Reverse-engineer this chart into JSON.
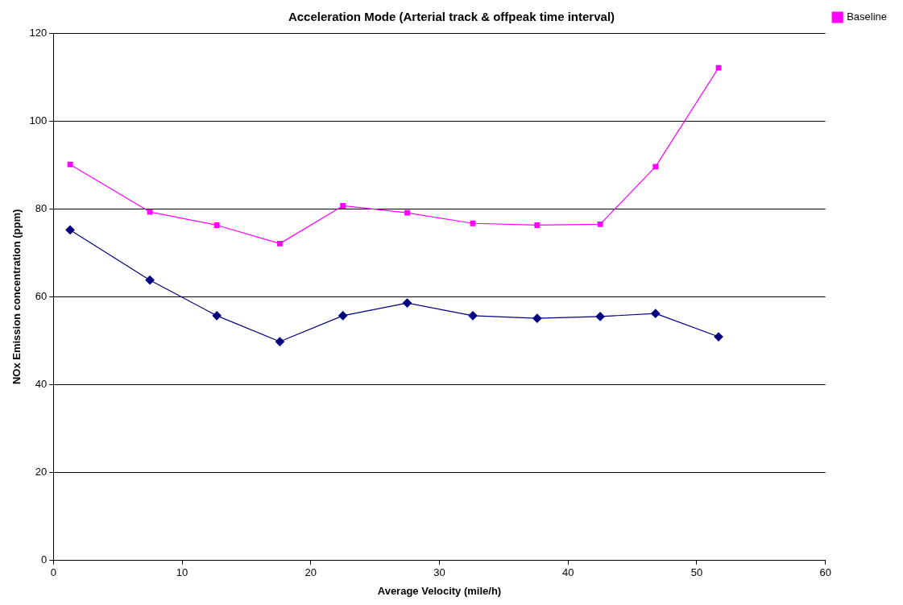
{
  "chart_data": {
    "type": "line",
    "title": "Acceleration Mode (Arterial track & offpeak time interval)",
    "xlabel": "Average Velocity (mile/h)",
    "ylabel": "NOx Emission concentration (ppm)",
    "x": [
      1.3,
      7.5,
      12.7,
      17.6,
      22.5,
      27.5,
      32.6,
      37.6,
      42.5,
      46.8,
      51.7
    ],
    "series": [
      {
        "color": "#000080",
        "marker": "diamond",
        "values": [
          75.2,
          63.8,
          55.7,
          49.8,
          55.7,
          58.6,
          55.7,
          55.1,
          55.5,
          56.2,
          50.9
        ]
      },
      {
        "name": "Baseline",
        "color": "#ff00ff",
        "marker": "square",
        "values": [
          90.1,
          79.3,
          76.3,
          72.1,
          80.7,
          79.1,
          76.7,
          76.3,
          76.5,
          89.6,
          112.1
        ]
      }
    ],
    "xlim": [
      0,
      60
    ],
    "xticks": [
      0,
      10,
      20,
      30,
      40,
      50,
      60
    ],
    "ylim": [
      0,
      120
    ],
    "yticks": [
      0,
      20,
      40,
      60,
      80,
      100,
      120
    ],
    "grid": "y",
    "legend": "top right"
  }
}
